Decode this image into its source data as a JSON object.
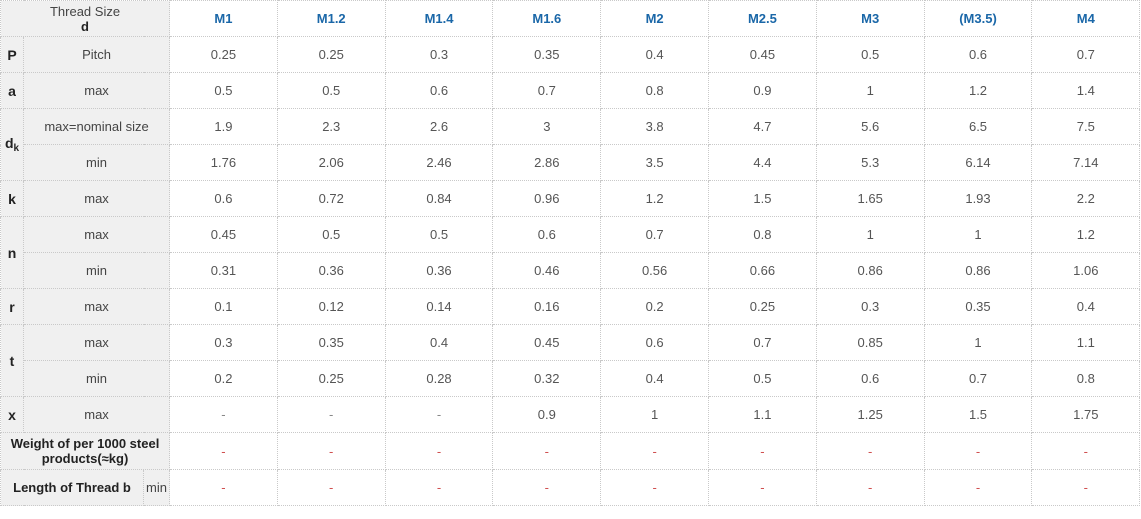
{
  "header": {
    "label_line1": "Thread Size",
    "label_line2": "d",
    "sizes": [
      "M1",
      "M1.2",
      "M1.4",
      "M1.6",
      "M2",
      "M2.5",
      "M3",
      "(M3.5)",
      "M4"
    ]
  },
  "rows": {
    "pitch": {
      "symbol": "P",
      "label": "Pitch",
      "values": [
        "0.25",
        "0.25",
        "0.3",
        "0.35",
        "0.4",
        "0.45",
        "0.5",
        "0.6",
        "0.7"
      ]
    },
    "a_max": {
      "symbol": "a",
      "label": "max",
      "values": [
        "0.5",
        "0.5",
        "0.6",
        "0.7",
        "0.8",
        "0.9",
        "1",
        "1.2",
        "1.4"
      ]
    },
    "dk_max": {
      "symbol": "d",
      "symbol_sub": "k",
      "label": "max=nominal size",
      "values": [
        "1.9",
        "2.3",
        "2.6",
        "3",
        "3.8",
        "4.7",
        "5.6",
        "6.5",
        "7.5"
      ]
    },
    "dk_min": {
      "label": "min",
      "values": [
        "1.76",
        "2.06",
        "2.46",
        "2.86",
        "3.5",
        "4.4",
        "5.3",
        "6.14",
        "7.14"
      ]
    },
    "k_max": {
      "symbol": "k",
      "label": "max",
      "values": [
        "0.6",
        "0.72",
        "0.84",
        "0.96",
        "1.2",
        "1.5",
        "1.65",
        "1.93",
        "2.2"
      ]
    },
    "n_max": {
      "symbol": "n",
      "label": "max",
      "values": [
        "0.45",
        "0.5",
        "0.5",
        "0.6",
        "0.7",
        "0.8",
        "1",
        "1",
        "1.2"
      ]
    },
    "n_min": {
      "label": "min",
      "values": [
        "0.31",
        "0.36",
        "0.36",
        "0.46",
        "0.56",
        "0.66",
        "0.86",
        "0.86",
        "1.06"
      ]
    },
    "r_max": {
      "symbol": "r",
      "label": "max",
      "values": [
        "0.1",
        "0.12",
        "0.14",
        "0.16",
        "0.2",
        "0.25",
        "0.3",
        "0.35",
        "0.4"
      ]
    },
    "t_max": {
      "symbol": "t",
      "label": "max",
      "values": [
        "0.3",
        "0.35",
        "0.4",
        "0.45",
        "0.6",
        "0.7",
        "0.85",
        "1",
        "1.1"
      ]
    },
    "t_min": {
      "label": "min",
      "values": [
        "0.2",
        "0.25",
        "0.28",
        "0.32",
        "0.4",
        "0.5",
        "0.6",
        "0.7",
        "0.8"
      ]
    },
    "x_max": {
      "symbol": "x",
      "label": "max",
      "values": [
        "-",
        "-",
        "-",
        "0.9",
        "1",
        "1.1",
        "1.25",
        "1.5",
        "1.75"
      ]
    },
    "weight": {
      "label_line1": "Weight of per 1000 steel",
      "label_line2": "products(≈kg)",
      "values": [
        "-",
        "-",
        "-",
        "-",
        "-",
        "-",
        "-",
        "-",
        "-"
      ]
    },
    "thread_length": {
      "label": "Length of Thread b",
      "sublabel": "min",
      "values": [
        "-",
        "-",
        "-",
        "-",
        "-",
        "-",
        "-",
        "-",
        "-"
      ]
    }
  },
  "colors": {
    "header_text": "#1a67a8",
    "label_bg": "#f0f0f0",
    "dash": "#d05050"
  }
}
